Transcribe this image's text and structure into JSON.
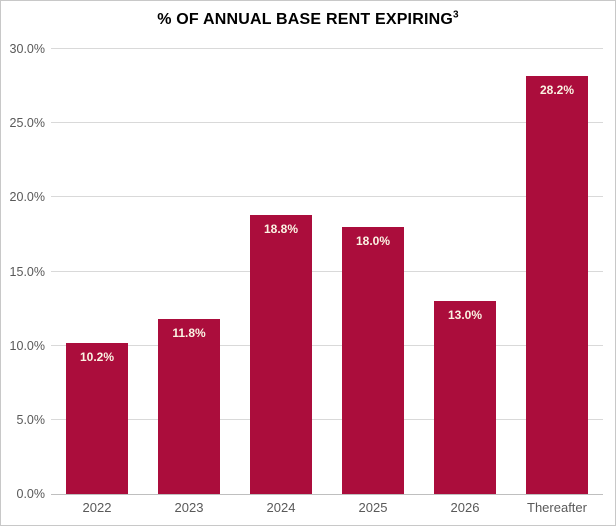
{
  "chart_data": {
    "type": "bar",
    "title": "% OF ANNUAL BASE RENT EXPIRING",
    "title_footnote_marker": "3",
    "categories": [
      "2022",
      "2023",
      "2024",
      "2025",
      "2026",
      "Thereafter"
    ],
    "values": [
      10.2,
      11.8,
      18.8,
      18.0,
      13.0,
      28.2
    ],
    "data_labels": [
      "10.2%",
      "11.8%",
      "18.8%",
      "18.0%",
      "13.0%",
      "28.2%"
    ],
    "xlabel": "",
    "ylabel": "",
    "ylim": [
      0,
      30
    ],
    "ytick_step": 5,
    "yticks": [
      "0.0%",
      "5.0%",
      "10.0%",
      "15.0%",
      "20.0%",
      "25.0%",
      "30.0%"
    ],
    "grid": true,
    "legend": false,
    "colors": {
      "bar": "#ab0d3c",
      "data_label_text": "#faf3e3",
      "gridline": "#d9d9d9",
      "baseline": "#bfbfbf",
      "axis_text": "#595959",
      "title_text": "#000000",
      "background": "#ffffff",
      "border": "#c8c8c8"
    }
  }
}
